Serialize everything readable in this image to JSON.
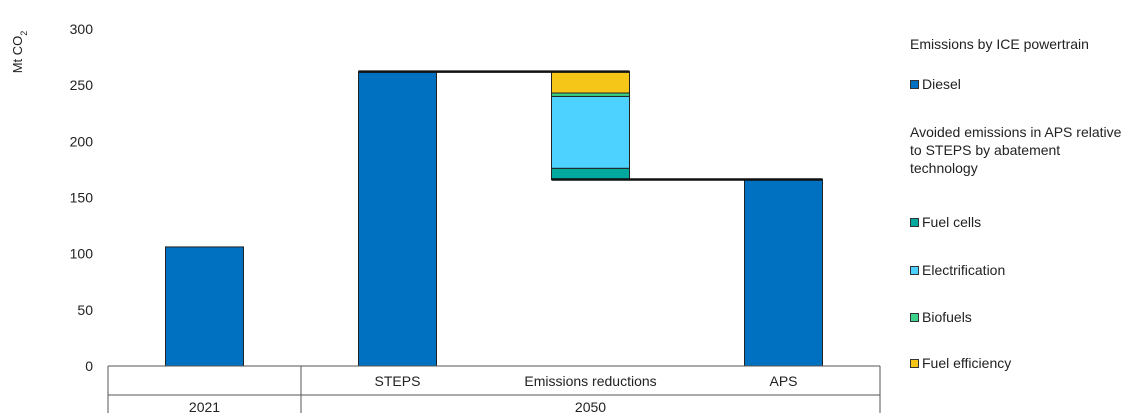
{
  "chart_data": {
    "type": "bar",
    "subtype": "waterfall",
    "ylabel": "Mt CO₂",
    "ylim": [
      0,
      300
    ],
    "yticks": [
      0,
      50,
      100,
      150,
      200,
      250,
      300
    ],
    "groups": [
      {
        "label": "2021",
        "categories": [
          "2021"
        ]
      },
      {
        "label": "2050",
        "categories": [
          "STEPS",
          "Emissions reductions",
          "APS"
        ]
      }
    ],
    "category_labels": [
      "",
      "STEPS",
      "Emissions reductions",
      "APS"
    ],
    "series": [
      {
        "name": "Diesel",
        "color": "#0070C0",
        "values": [
          106,
          262,
          null,
          166
        ]
      },
      {
        "name": "Fuel cells",
        "color": "#00A99D",
        "values": [
          null,
          null,
          10,
          null
        ]
      },
      {
        "name": "Electrification",
        "color": "#4DD2FF",
        "values": [
          null,
          null,
          64,
          null
        ]
      },
      {
        "name": "Biofuels",
        "color": "#3CD38A",
        "values": [
          null,
          null,
          3,
          null
        ]
      },
      {
        "name": "Fuel efficiency",
        "color": "#F5C518",
        "values": [
          null,
          null,
          19,
          null
        ]
      }
    ],
    "reductions_range": [
      166,
      262
    ],
    "legend": {
      "title": "Emissions by ICE powertrain",
      "paragraph": "Avoided emissions in APS relative to STEPS by abatement technology",
      "items": [
        "Diesel",
        "Fuel cells",
        "Electrification",
        "Biofuels",
        "Fuel efficiency"
      ]
    },
    "legend_position": "right",
    "grid": false
  }
}
